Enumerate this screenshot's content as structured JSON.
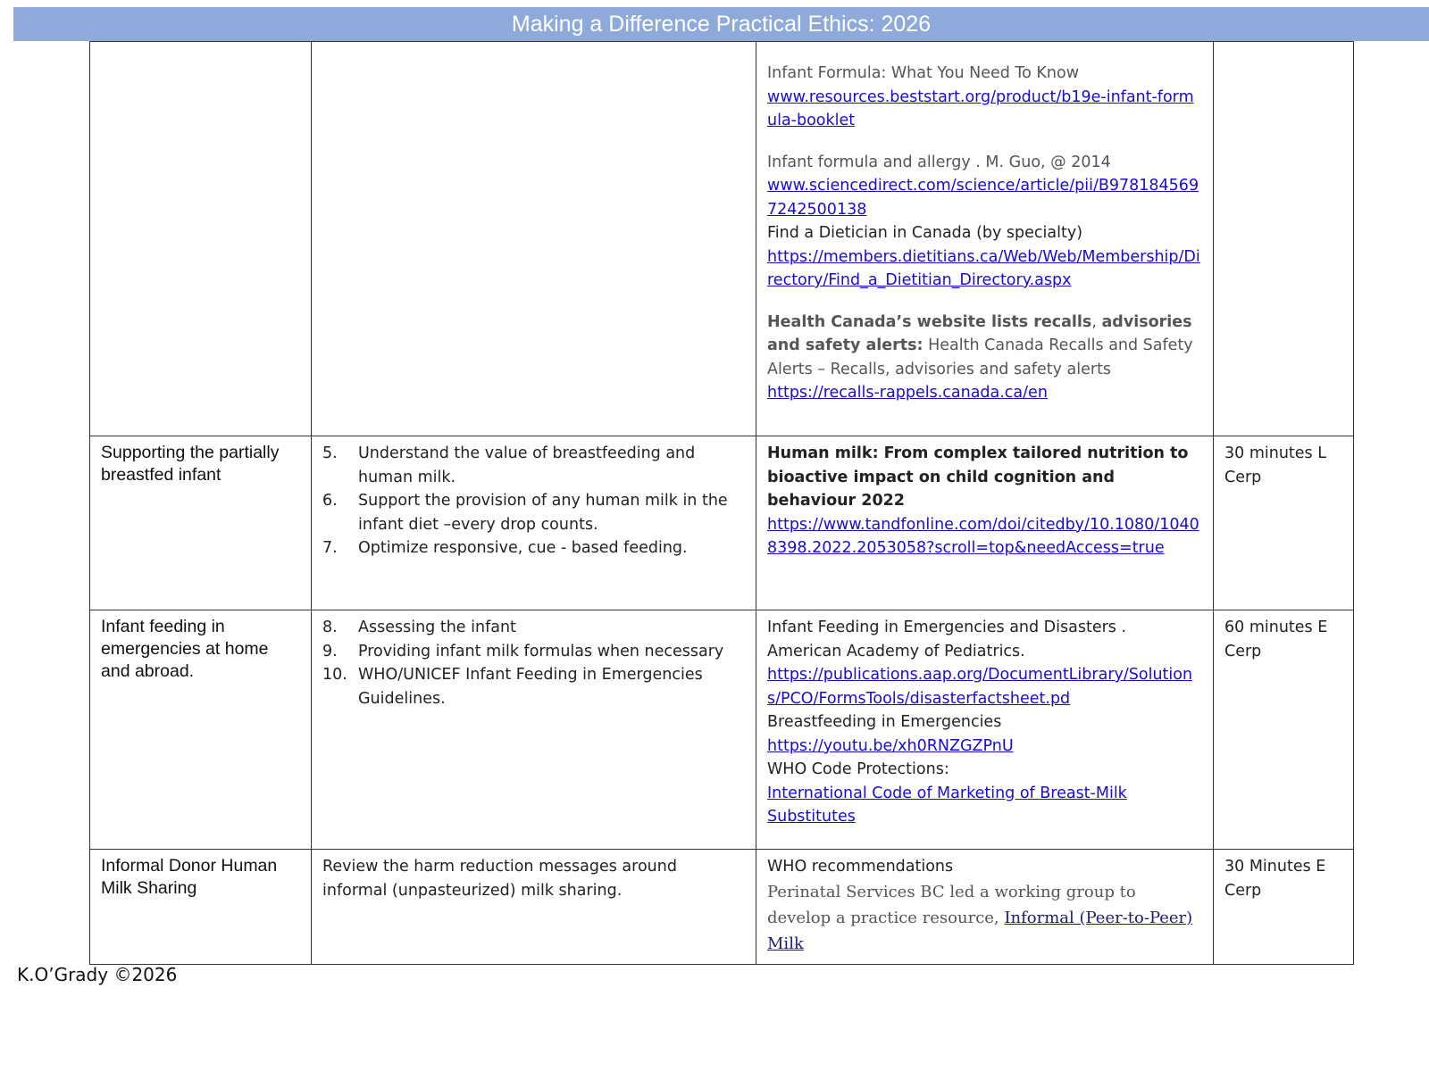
{
  "header": {
    "title": "Making a Difference Practical Ethics: 2026"
  },
  "rows": [
    {
      "topic": "",
      "objectives": [],
      "resources": {
        "r1_title": "Infant Formula: What You Need To Know",
        "r1_link": "www.resources.beststart.org/product/b19e-infant-formula-booklet",
        "r2_title": "Infant formula and allergy . M. Guo, @ 2014",
        "r2_link": "www.sciencedirect.com/science/article/pii/B9781845697242500138",
        "r3_title": "Find a Dietician in Canada (by specialty)",
        "r3_link": "https://members.dietitians.ca/Web/Web/Membership/Directory/Find_a_Dietitian_Directory.aspx",
        "r4_bold1": "Health Canada’s website lists recalls",
        "r4_comma": ", ",
        "r4_bold2": "advisories and safety alerts:",
        "r4_text": "  Health Canada Recalls and Safety Alerts – Recalls, advisories and safety alerts",
        "r4_link": "https://recalls-rappels.canada.ca/en"
      },
      "time": ""
    },
    {
      "topic": "Supporting the partially breastfed infant",
      "objectives": [
        {
          "n": "5.",
          "text": "Understand the value of breastfeeding and human milk."
        },
        {
          "n": "6.",
          "text": "Support the provision of any human milk in the infant diet –every drop counts."
        },
        {
          "n": "7.",
          "text": "Optimize responsive, cue - based feeding."
        }
      ],
      "resources": {
        "title": "Human milk: From complex tailored nutrition to bioactive impact on child cognition and behaviour 2022",
        "link": "https://www.tandfonline.com/doi/citedby/10.1080/10408398.2022.2053058?scroll=top&needAccess=true"
      },
      "time": "30 minutes   L Cerp"
    },
    {
      "topic": "Infant feeding in emergencies at home and abroad.",
      "objectives": [
        {
          "n": "8.",
          "text": "Assessing the infant"
        },
        {
          "n": "9.",
          "text": "Providing infant milk formulas when necessary"
        },
        {
          "n": "10.",
          "text": "WHO/UNICEF Infant Feeding in Emergencies Guidelines."
        }
      ],
      "resources": {
        "r1_title": "Infant Feeding in Emergencies and Disasters . American Academy of Pediatrics.",
        "r1_link": "https://publications.aap.org/DocumentLibrary/Solutions/PCO/FormsTools/disasterfactsheet.pd",
        "r2_title": "Breastfeeding in Emergencies",
        "r2_link": "https://youtu.be/xh0RNZGZPnU",
        "r3_title": "WHO Code Protections:",
        "r3_link": "International Code of Marketing of Breast-Milk Substitutes"
      },
      "time": "60 minutes E Cerp"
    },
    {
      "topic": "Informal Donor Human Milk Sharing",
      "objectives_text": "Review the harm reduction messages around informal (unpasteurized) milk sharing.",
      "resources": {
        "title": "WHO recommendations",
        "text": "Perinatal Services BC led a working group to develop a practice resource, ",
        "link": "Informal (Peer-to-Peer) Milk"
      },
      "time": "30 Minutes E Cerp"
    }
  ],
  "footer": {
    "text": "K.O’Grady ©2026"
  }
}
